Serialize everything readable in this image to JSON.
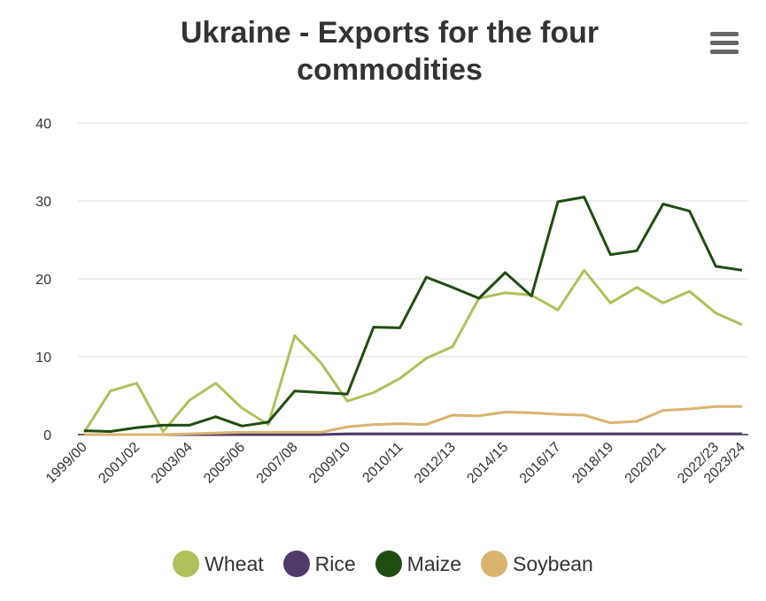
{
  "chart_data": {
    "type": "line",
    "title": "Ukraine - Exports for the four commodities",
    "categories": [
      "1999/00",
      null,
      "2001/02",
      null,
      "2003/04",
      null,
      "2005/06",
      null,
      "2007/08",
      null,
      "2009/10",
      null,
      "2010/11",
      null,
      "2012/13",
      null,
      "2014/15",
      null,
      "2016/17",
      null,
      "2018/19",
      null,
      "2020/21",
      null,
      "2022/23",
      "2023/24"
    ],
    "series": [
      {
        "name": "Wheat",
        "color": "#afc15a",
        "values": [
          0.3,
          5.6,
          6.6,
          0.4,
          4.4,
          6.6,
          3.4,
          1.3,
          12.7,
          9.2,
          4.3,
          5.4,
          7.2,
          9.8,
          11.3,
          17.5,
          18.2,
          17.9,
          16,
          21.1,
          16.9,
          18.9,
          16.9,
          18.4,
          15.6,
          14.1
        ]
      },
      {
        "name": "Rice",
        "color": "#4f3a6b",
        "values": [
          0,
          0,
          0,
          0,
          0,
          0,
          0,
          0,
          0,
          0,
          0.1,
          0.1,
          0.1,
          0.1,
          0.1,
          0.1,
          0.1,
          0.1,
          0.1,
          0.1,
          0.1,
          0.1,
          0.1,
          0.1,
          0.1,
          0.1
        ]
      },
      {
        "name": "Maize",
        "color": "#1f4d12",
        "values": [
          0.5,
          0.4,
          0.9,
          1.2,
          1.2,
          2.3,
          1.1,
          1.6,
          5.6,
          5.4,
          5.2,
          13.8,
          13.7,
          20.2,
          18.9,
          17.5,
          20.8,
          17.8,
          29.9,
          30.5,
          23.1,
          23.6,
          29.6,
          28.7,
          21.6,
          21.1
        ]
      },
      {
        "name": "Soybean",
        "color": "#d9b46e",
        "values": [
          0,
          0,
          0,
          0,
          0.1,
          0.2,
          0.3,
          0.3,
          0.3,
          0.3,
          1.0,
          1.3,
          1.4,
          1.3,
          2.5,
          2.4,
          2.9,
          2.8,
          2.6,
          2.5,
          1.5,
          1.7,
          3.1,
          3.3,
          3.6,
          3.6
        ]
      }
    ],
    "ylim": [
      0,
      40
    ],
    "yticks": [
      0,
      10,
      20,
      30,
      40
    ],
    "grid": true,
    "legend": "bottom"
  }
}
